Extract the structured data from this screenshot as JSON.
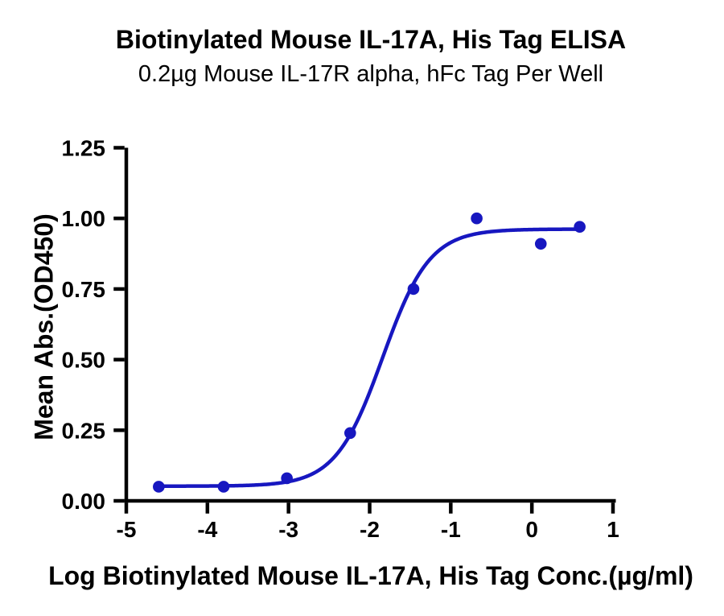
{
  "page": {
    "background_color": "#ffffff"
  },
  "chart_data": {
    "type": "scatter",
    "subtype": "sigmoidal-dose-response-elisa",
    "title": "Biotinylated Mouse IL-17A, His Tag ELISA",
    "subtitle": "0.2µg Mouse IL-17R alpha, hFc Tag Per Well",
    "xlabel": "Log Biotinylated Mouse IL-17A, His Tag Conc.(µg/ml)",
    "ylabel": "Mean Abs.(OD450)",
    "xlim": [
      -5,
      1
    ],
    "ylim": [
      0,
      1.25
    ],
    "grid": false,
    "legend": "none",
    "xticks": {
      "values": [
        -5,
        -4,
        -3,
        -2,
        -1,
        0,
        1
      ],
      "labels": [
        "-5",
        "-4",
        "-3",
        "-2",
        "-1",
        "0",
        "1"
      ]
    },
    "yticks": {
      "values": [
        0,
        0.25,
        0.5,
        0.75,
        1.0,
        1.25
      ],
      "labels": [
        "0.00",
        "0.25",
        "0.50",
        "0.75",
        "1.00",
        "1.25"
      ]
    },
    "points": [
      {
        "x": -4.6,
        "y": 0.05
      },
      {
        "x": -3.8,
        "y": 0.05
      },
      {
        "x": -3.02,
        "y": 0.08
      },
      {
        "x": -2.24,
        "y": 0.24
      },
      {
        "x": -1.46,
        "y": 0.75
      },
      {
        "x": -0.68,
        "y": 1.0
      },
      {
        "x": 0.11,
        "y": 0.91
      },
      {
        "x": 0.59,
        "y": 0.97
      }
    ],
    "curve_fit": {
      "model": "4PL",
      "bottom": 0.052,
      "top": 0.962,
      "log_ec50": -1.84,
      "hill_slope": 1.5,
      "x_start": -4.6,
      "x_end": 0.59
    },
    "colors": {
      "series": "#1717c0",
      "axis": "#000000",
      "text": "#000000"
    },
    "style": {
      "marker_radius": 7.3,
      "line_width": 4.5,
      "axis_width": 4.5,
      "tick_length": 13.5
    }
  }
}
